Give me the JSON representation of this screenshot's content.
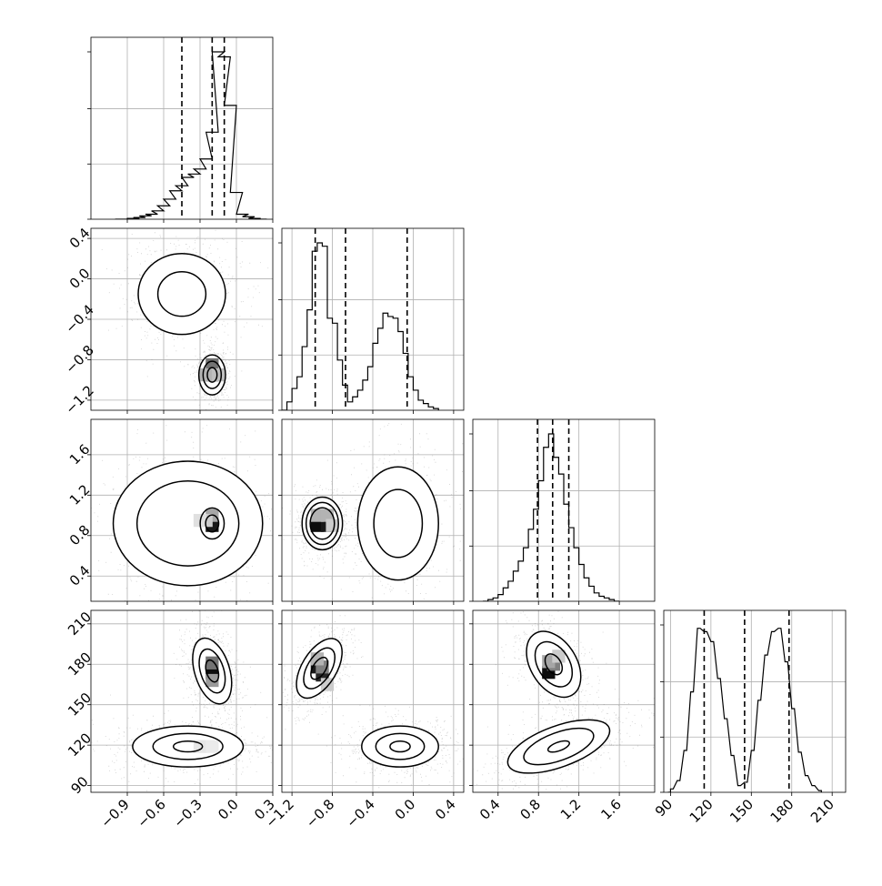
{
  "chart_data": {
    "type": "corner",
    "parameters": 4,
    "grid": true,
    "quantile_lines": "dashed",
    "panels": [
      {
        "kind": "histogram",
        "row": 0,
        "col": 0,
        "param": 0,
        "xlim": [
          -1.2,
          0.3
        ],
        "quantiles": [
          -0.45,
          -0.2,
          -0.1
        ],
        "bins": [
          [
            -1.0,
            0.0
          ],
          [
            -0.9,
            0.005
          ],
          [
            -0.85,
            0.01
          ],
          [
            -0.8,
            0.02
          ],
          [
            -0.75,
            0.03
          ],
          [
            -0.7,
            0.05
          ],
          [
            -0.65,
            0.08
          ],
          [
            -0.6,
            0.12
          ],
          [
            -0.55,
            0.17
          ],
          [
            -0.5,
            0.2
          ],
          [
            -0.45,
            0.25
          ],
          [
            -0.4,
            0.27
          ],
          [
            -0.35,
            0.3
          ],
          [
            -0.3,
            0.36
          ],
          [
            -0.25,
            0.52
          ],
          [
            -0.2,
            1.0
          ],
          [
            -0.15,
            0.97
          ],
          [
            -0.1,
            0.68
          ],
          [
            -0.05,
            0.16
          ],
          [
            0.0,
            0.03
          ],
          [
            0.05,
            0.015
          ],
          [
            0.1,
            0.005
          ],
          [
            0.15,
            0.0
          ]
        ]
      },
      {
        "kind": "histogram",
        "row": 1,
        "col": 1,
        "param": 1,
        "xlim": [
          -1.3,
          0.5
        ],
        "quantiles": [
          -0.97,
          -0.67,
          -0.06
        ],
        "bins": [
          [
            -1.3,
            0.0
          ],
          [
            -1.25,
            0.05
          ],
          [
            -1.2,
            0.13
          ],
          [
            -1.15,
            0.2
          ],
          [
            -1.1,
            0.38
          ],
          [
            -1.05,
            0.6
          ],
          [
            -1.0,
            0.95
          ],
          [
            -0.95,
            1.0
          ],
          [
            -0.9,
            0.98
          ],
          [
            -0.85,
            0.55
          ],
          [
            -0.8,
            0.52
          ],
          [
            -0.75,
            0.3
          ],
          [
            -0.7,
            0.15
          ],
          [
            -0.65,
            0.05
          ],
          [
            -0.6,
            0.08
          ],
          [
            -0.55,
            0.12
          ],
          [
            -0.5,
            0.18
          ],
          [
            -0.45,
            0.26
          ],
          [
            -0.4,
            0.4
          ],
          [
            -0.35,
            0.49
          ],
          [
            -0.3,
            0.58
          ],
          [
            -0.25,
            0.56
          ],
          [
            -0.2,
            0.55
          ],
          [
            -0.15,
            0.47
          ],
          [
            -0.1,
            0.34
          ],
          [
            -0.05,
            0.2
          ],
          [
            0.0,
            0.12
          ],
          [
            0.05,
            0.06
          ],
          [
            0.1,
            0.04
          ],
          [
            0.15,
            0.02
          ],
          [
            0.2,
            0.01
          ]
        ]
      },
      {
        "kind": "histogram",
        "row": 2,
        "col": 2,
        "param": 2,
        "xlim": [
          0.15,
          1.95
        ],
        "quantiles": [
          0.79,
          0.94,
          1.1
        ],
        "bins": [
          [
            0.25,
            0.0
          ],
          [
            0.3,
            0.01
          ],
          [
            0.35,
            0.02
          ],
          [
            0.4,
            0.04
          ],
          [
            0.45,
            0.08
          ],
          [
            0.5,
            0.12
          ],
          [
            0.55,
            0.18
          ],
          [
            0.6,
            0.24
          ],
          [
            0.65,
            0.32
          ],
          [
            0.7,
            0.43
          ],
          [
            0.75,
            0.55
          ],
          [
            0.8,
            0.72
          ],
          [
            0.85,
            0.92
          ],
          [
            0.9,
            1.0
          ],
          [
            0.95,
            0.86
          ],
          [
            1.0,
            0.76
          ],
          [
            1.05,
            0.58
          ],
          [
            1.1,
            0.44
          ],
          [
            1.15,
            0.32
          ],
          [
            1.2,
            0.22
          ],
          [
            1.25,
            0.14
          ],
          [
            1.3,
            0.09
          ],
          [
            1.35,
            0.05
          ],
          [
            1.4,
            0.03
          ],
          [
            1.45,
            0.02
          ],
          [
            1.5,
            0.01
          ],
          [
            1.55,
            0.0
          ]
        ]
      },
      {
        "kind": "histogram",
        "row": 3,
        "col": 3,
        "param": 3,
        "xlim": [
          85,
          220
        ],
        "quantiles": [
          115,
          145,
          178
        ],
        "bins": [
          [
            88,
            0.0
          ],
          [
            90,
            0.02
          ],
          [
            95,
            0.07
          ],
          [
            100,
            0.25
          ],
          [
            105,
            0.6
          ],
          [
            110,
            0.98
          ],
          [
            115,
            0.96
          ],
          [
            120,
            0.9
          ],
          [
            125,
            0.68
          ],
          [
            130,
            0.44
          ],
          [
            135,
            0.22
          ],
          [
            140,
            0.04
          ],
          [
            145,
            0.06
          ],
          [
            150,
            0.25
          ],
          [
            155,
            0.55
          ],
          [
            160,
            0.82
          ],
          [
            165,
            0.96
          ],
          [
            170,
            0.98
          ],
          [
            175,
            0.78
          ],
          [
            180,
            0.5
          ],
          [
            185,
            0.24
          ],
          [
            190,
            0.1
          ],
          [
            195,
            0.04
          ],
          [
            200,
            0.01
          ]
        ]
      },
      {
        "kind": "hist2d",
        "row": 1,
        "col": 0,
        "xparam": 0,
        "yparam": 1,
        "xlim": [
          -1.2,
          0.3
        ],
        "ylim": [
          -1.3,
          0.5
        ],
        "modes": [
          {
            "cx": -0.45,
            "cy": -0.15,
            "sx": 0.18,
            "sy": 0.2,
            "sigma": [
              1.1,
              2.0
            ],
            "rot": 0,
            "weight": 0.5
          },
          {
            "cx": -0.2,
            "cy": -0.95,
            "sx": 0.05,
            "sy": 0.09,
            "sigma": [
              0.8,
              1.5,
              2.2
            ],
            "rot": 0,
            "weight": 0.5
          }
        ],
        "dense_cells": [
          [
            -0.2,
            -0.95,
            0.9
          ],
          [
            -0.2,
            -0.85,
            0.55
          ],
          [
            -0.25,
            -0.95,
            0.3
          ],
          [
            -0.15,
            -0.95,
            0.25
          ]
        ]
      },
      {
        "kind": "hist2d",
        "row": 2,
        "col": 0,
        "xparam": 0,
        "yparam": 2,
        "xlim": [
          -1.2,
          0.3
        ],
        "ylim": [
          0.15,
          1.95
        ],
        "modes": [
          {
            "cx": -0.4,
            "cy": 0.92,
            "sx": 0.28,
            "sy": 0.28,
            "sigma": [
              1.5,
              2.2
            ],
            "rot": 0,
            "weight": 0.5
          },
          {
            "cx": -0.2,
            "cy": 0.92,
            "sx": 0.09,
            "sy": 0.14,
            "sigma": [
              0.6,
              1.1
            ],
            "rot": 0,
            "weight": 0.5
          }
        ],
        "dense_cells": [
          [
            -0.2,
            0.9,
            0.9
          ],
          [
            -0.2,
            1.0,
            0.35
          ],
          [
            -0.25,
            0.95,
            0.2
          ],
          [
            -0.3,
            0.95,
            0.12
          ]
        ]
      },
      {
        "kind": "hist2d",
        "row": 3,
        "col": 0,
        "xparam": 0,
        "yparam": 3,
        "xlim": [
          -1.2,
          0.3
        ],
        "ylim": [
          85,
          220
        ],
        "modes": [
          {
            "cx": -0.2,
            "cy": 175,
            "sx": 0.08,
            "sy": 14,
            "sigma": [
              0.6,
              1.2,
              1.8
            ],
            "rot": -0.3,
            "weight": 0.5
          },
          {
            "cx": -0.4,
            "cy": 119,
            "sx": 0.24,
            "sy": 8,
            "sigma": [
              0.5,
              1.2,
              1.9
            ],
            "rot": 0,
            "weight": 0.5
          }
        ],
        "dense_cells": [
          [
            -0.2,
            174,
            0.95
          ],
          [
            -0.2,
            181,
            0.55
          ],
          [
            -0.2,
            168,
            0.4
          ],
          [
            -0.3,
            119,
            0.1
          ],
          [
            -0.2,
            119,
            0.08
          ]
        ]
      },
      {
        "kind": "hist2d",
        "row": 2,
        "col": 1,
        "xparam": 1,
        "yparam": 2,
        "xlim": [
          -1.3,
          0.5
        ],
        "ylim": [
          0.15,
          1.95
        ],
        "modes": [
          {
            "cx": -0.9,
            "cy": 0.92,
            "sx": 0.1,
            "sy": 0.13,
            "sigma": [
              1.2,
              1.6,
              2.0
            ],
            "rot": 0,
            "weight": 0.5
          },
          {
            "cx": -0.15,
            "cy": 0.92,
            "sx": 0.2,
            "sy": 0.28,
            "sigma": [
              1.2,
              2.0
            ],
            "rot": 0,
            "weight": 0.5
          }
        ],
        "dense_cells": [
          [
            -0.95,
            0.9,
            0.95
          ],
          [
            -0.85,
            0.9,
            0.9
          ],
          [
            -0.95,
            1.0,
            0.3
          ],
          [
            -0.85,
            1.0,
            0.3
          ],
          [
            -0.8,
            0.9,
            0.2
          ]
        ]
      },
      {
        "kind": "hist2d",
        "row": 3,
        "col": 1,
        "xparam": 1,
        "yparam": 3,
        "xlim": [
          -1.3,
          0.5
        ],
        "ylim": [
          85,
          220
        ],
        "modes": [
          {
            "cx": -0.93,
            "cy": 177,
            "sx": 0.09,
            "sy": 13,
            "sigma": [
              0.7,
              1.3,
              1.9
            ],
            "rot": 0.55,
            "weight": 0.5
          },
          {
            "cx": -0.13,
            "cy": 119,
            "sx": 0.2,
            "sy": 8,
            "sigma": [
              0.5,
              1.2,
              1.9
            ],
            "rot": 0,
            "weight": 0.5
          }
        ],
        "dense_cells": [
          [
            -0.95,
            178,
            0.9
          ],
          [
            -0.9,
            172,
            0.85
          ],
          [
            -0.9,
            178,
            0.5
          ],
          [
            -0.95,
            184,
            0.3
          ],
          [
            -0.85,
            165,
            0.2
          ]
        ]
      },
      {
        "kind": "hist2d",
        "row": 3,
        "col": 2,
        "xparam": 2,
        "yparam": 3,
        "xlim": [
          0.15,
          1.95
        ],
        "ylim": [
          85,
          220
        ],
        "modes": [
          {
            "cx": 0.95,
            "cy": 180,
            "sx": 0.12,
            "sy": 14,
            "sigma": [
              0.6,
              1.3,
              1.9
            ],
            "rot": -0.55,
            "weight": 0.5
          },
          {
            "cx": 1.0,
            "cy": 119,
            "sx": 0.28,
            "sy": 8,
            "sigma": [
              0.4,
              1.3,
              1.9
            ],
            "rot": -0.35,
            "weight": 0.5
          }
        ],
        "dense_cells": [
          [
            0.9,
            174,
            0.95
          ],
          [
            0.95,
            180,
            0.5
          ],
          [
            0.9,
            182,
            0.35
          ],
          [
            1.0,
            186,
            0.2
          ]
        ]
      }
    ],
    "ticks": [
      {
        "values": [
          -0.9,
          -0.6,
          -0.3,
          0.0,
          0.3
        ],
        "labels": [
          "−0.9",
          "−0.6",
          "−0.3",
          "0.0",
          "0.3"
        ]
      },
      {
        "values": [
          -1.2,
          -0.8,
          -0.4,
          0.0,
          0.4
        ],
        "labels": [
          "−1.2",
          "−0.8",
          "−0.4",
          "0.0",
          "0.4"
        ]
      },
      {
        "values": [
          0.4,
          0.8,
          1.2,
          1.6
        ],
        "labels": [
          "0.4",
          "0.8",
          "1.2",
          "1.6"
        ]
      },
      {
        "values": [
          90,
          120,
          150,
          180,
          210
        ],
        "labels": [
          "90",
          "120",
          "150",
          "180",
          "210"
        ]
      }
    ]
  }
}
